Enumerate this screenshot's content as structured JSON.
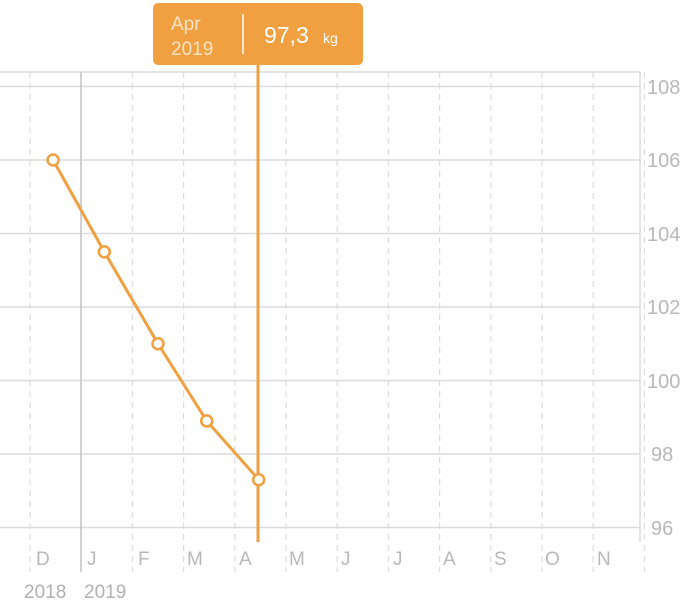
{
  "chart_data": {
    "type": "line",
    "x_tick_labels": [
      "D",
      "J",
      "F",
      "M",
      "A",
      "M",
      "J",
      "J",
      "A",
      "S",
      "O",
      "N"
    ],
    "year_labels": [
      "2018",
      "2019"
    ],
    "y_tick_labels": [
      "108",
      "106",
      "104",
      "102",
      "100",
      "98",
      "96"
    ],
    "ylim": [
      95.5,
      108
    ],
    "grid": true,
    "y_axis_position": "right",
    "series": [
      {
        "color": "#f0a040",
        "x": [
          "2018-12-15",
          "2019-01-15",
          "2019-02-15",
          "2019-03-15",
          "2019-04-15"
        ],
        "y": [
          106.0,
          103.5,
          101.0,
          98.9,
          97.3
        ]
      }
    ],
    "tooltip": {
      "month": "Apr",
      "year": "2019",
      "value": "97,3",
      "unit": "kg"
    }
  },
  "colors": {
    "accent": "#f0a040",
    "grid": "#dcdcdc",
    "label": "#b8b8b8"
  }
}
